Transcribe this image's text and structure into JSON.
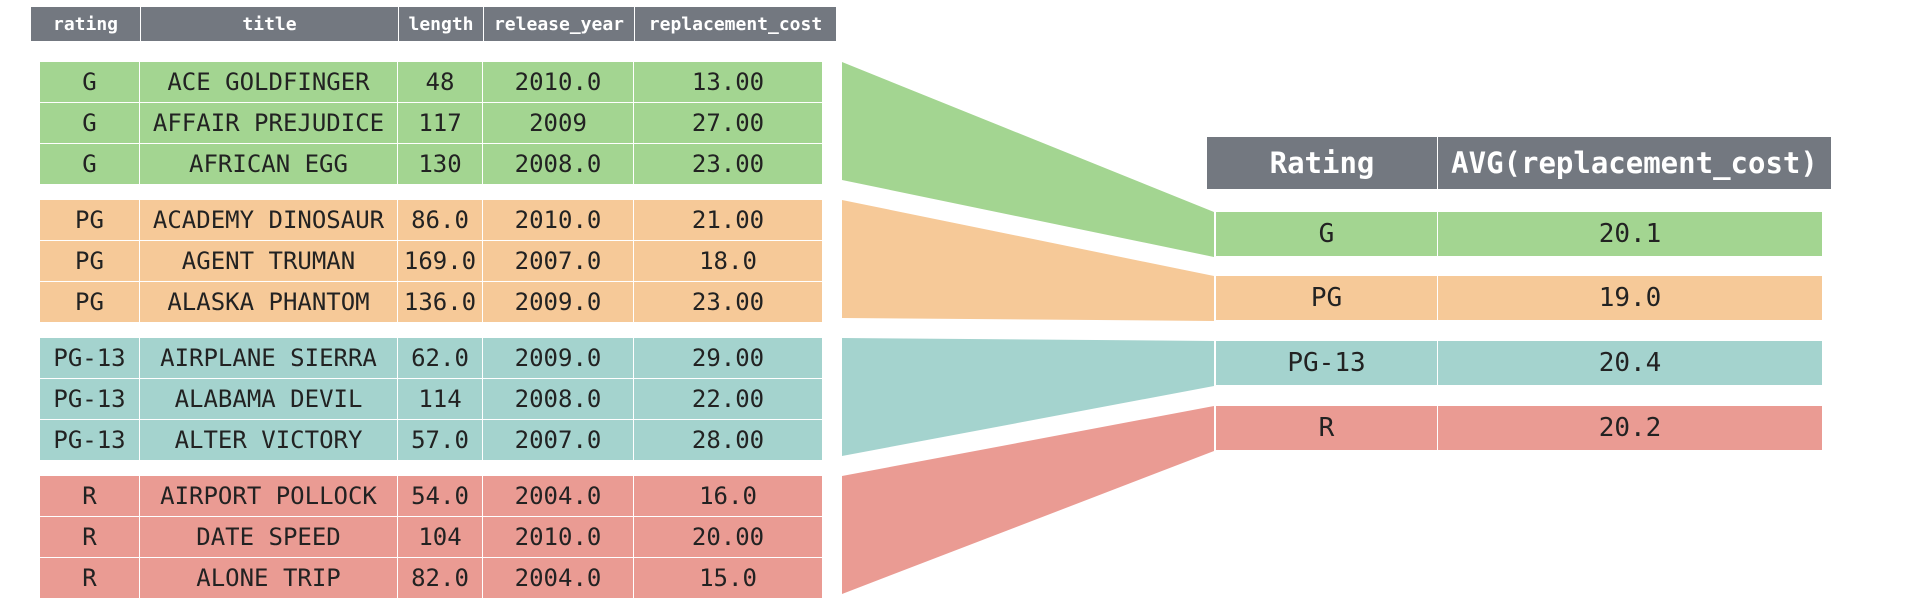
{
  "colors": {
    "header": "#737880",
    "G": "#a3d591",
    "PG": "#f6c998",
    "PG-13": "#a4d3ce",
    "R": "#ea9b93"
  },
  "source_table": {
    "columns": [
      "rating",
      "title",
      "length",
      "release_year",
      "replacement_cost"
    ],
    "groups": [
      {
        "rating": "G",
        "rows": [
          [
            "G",
            "ACE GOLDFINGER",
            "48",
            "2010.0",
            "13.00"
          ],
          [
            "G",
            "AFFAIR PREJUDICE",
            "117",
            "2009",
            "27.00"
          ],
          [
            "G",
            "AFRICAN EGG",
            "130",
            "2008.0",
            "23.00"
          ]
        ]
      },
      {
        "rating": "PG",
        "rows": [
          [
            "PG",
            "ACADEMY DINOSAUR",
            "86.0",
            "2010.0",
            "21.00"
          ],
          [
            "PG",
            "AGENT TRUMAN",
            "169.0",
            "2007.0",
            "18.0"
          ],
          [
            "PG",
            "ALASKA PHANTOM",
            "136.0",
            "2009.0",
            "23.00"
          ]
        ]
      },
      {
        "rating": "PG-13",
        "rows": [
          [
            "PG-13",
            "AIRPLANE SIERRA",
            "62.0",
            "2009.0",
            "29.00"
          ],
          [
            "PG-13",
            "ALABAMA DEVIL",
            "114",
            "2008.0",
            "22.00"
          ],
          [
            "PG-13",
            "ALTER VICTORY",
            "57.0",
            "2007.0",
            "28.00"
          ]
        ]
      },
      {
        "rating": "R",
        "rows": [
          [
            "R",
            "AIRPORT POLLOCK",
            "54.0",
            "2004.0",
            "16.0"
          ],
          [
            "R",
            "DATE SPEED",
            "104",
            "2010.0",
            "20.00"
          ],
          [
            "R",
            "ALONE TRIP",
            "82.0",
            "2004.0",
            "15.0"
          ]
        ]
      }
    ]
  },
  "result_table": {
    "columns": [
      "Rating",
      "AVG(replacement_cost)"
    ],
    "rows": [
      [
        "G",
        "20.1"
      ],
      [
        "PG",
        "19.0"
      ],
      [
        "PG-13",
        "20.4"
      ],
      [
        "R",
        "20.2"
      ]
    ]
  }
}
